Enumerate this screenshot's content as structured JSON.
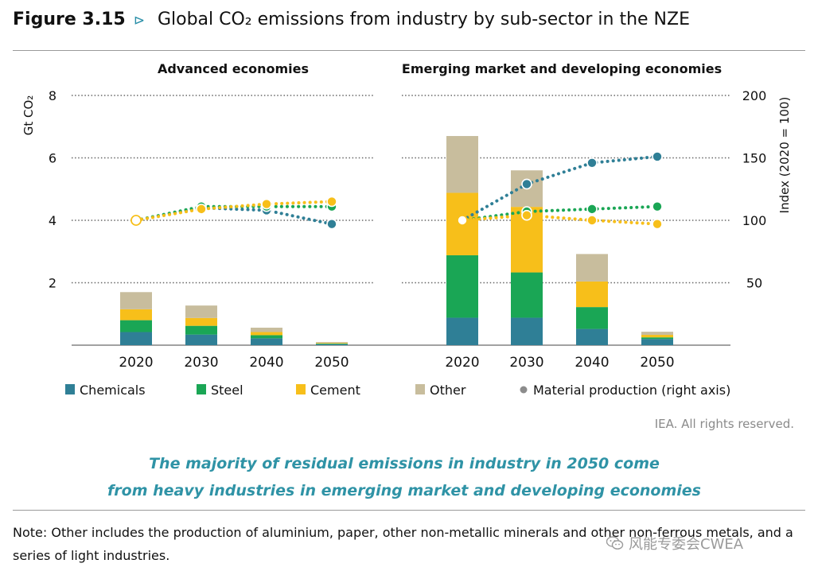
{
  "figure": {
    "number": "Figure 3.15",
    "arrow": "⊳",
    "title": "Global CO₂ emissions from industry by sub-sector in the NZE"
  },
  "chart_data": {
    "type": "bar",
    "stacked": true,
    "categories": [
      "2020",
      "2030",
      "2040",
      "2050"
    ],
    "panels": [
      {
        "title": "Advanced economies",
        "series": [
          {
            "name": "Chemicals",
            "color": "#2f7f96",
            "values": [
              0.42,
              0.34,
              0.22,
              0.03
            ]
          },
          {
            "name": "Steel",
            "color": "#1aa655",
            "values": [
              0.38,
              0.28,
              0.1,
              0.02
            ]
          },
          {
            "name": "Cement",
            "color": "#f7bf1a",
            "values": [
              0.35,
              0.25,
              0.1,
              0.02
            ]
          },
          {
            "name": "Other",
            "color": "#c8bd9d",
            "values": [
              0.55,
              0.4,
              0.14,
              0.03
            ]
          }
        ],
        "index_lines": [
          {
            "name": "Chemicals",
            "color": "#2f7f96",
            "values": [
              100,
              110,
              108,
              97
            ]
          },
          {
            "name": "Steel",
            "color": "#1aa655",
            "values": [
              100,
              111,
              111,
              111
            ]
          },
          {
            "name": "Cement",
            "color": "#f7bf1a",
            "values": [
              100,
              109,
              113,
              115
            ]
          }
        ]
      },
      {
        "title": "Emerging market and developing economies",
        "series": [
          {
            "name": "Chemicals",
            "color": "#2f7f96",
            "values": [
              0.88,
              0.88,
              0.52,
              0.2
            ]
          },
          {
            "name": "Steel",
            "color": "#1aa655",
            "values": [
              2.0,
              1.45,
              0.7,
              0.05
            ]
          },
          {
            "name": "Cement",
            "color": "#f7bf1a",
            "values": [
              2.0,
              2.1,
              0.82,
              0.08
            ]
          },
          {
            "name": "Other",
            "color": "#c8bd9d",
            "values": [
              1.82,
              1.17,
              0.88,
              0.1
            ]
          }
        ],
        "index_lines": [
          {
            "name": "Chemicals",
            "color": "#2f7f96",
            "values": [
              100,
              129,
              146,
              151
            ]
          },
          {
            "name": "Steel",
            "color": "#1aa655",
            "values": [
              100,
              107,
              109,
              111
            ]
          },
          {
            "name": "Cement",
            "color": "#f7bf1a",
            "values": [
              100,
              104,
              100,
              97
            ]
          }
        ]
      }
    ],
    "y_left": {
      "label": "Gt CO₂",
      "min": 0,
      "max": 8,
      "ticks": [
        2,
        4,
        6,
        8
      ]
    },
    "y_right": {
      "label": "Index (2020 = 100)",
      "min": 0,
      "max": 200,
      "ticks": [
        50,
        100,
        150,
        200
      ]
    },
    "legend": [
      {
        "label": "Chemicals",
        "color": "#2f7f96",
        "kind": "square"
      },
      {
        "label": "Steel",
        "color": "#1aa655",
        "kind": "square"
      },
      {
        "label": "Cement",
        "color": "#f7bf1a",
        "kind": "square"
      },
      {
        "label": "Other",
        "color": "#c8bd9d",
        "kind": "square"
      },
      {
        "label": "Material production  (right axis)",
        "color": "#8c8c8c",
        "kind": "dot"
      }
    ],
    "grid": true,
    "legend_position": "bottom"
  },
  "rights": "IEA. All rights reserved.",
  "takeaway": {
    "line1": "The majority of residual emissions in industry in 2050 come",
    "line2": "from heavy industries in emerging market and developing economies"
  },
  "note": "Note: Other includes the production of aluminium, paper, other non-metallic minerals and other non-ferrous metals, and a series of light industries.",
  "watermark": "风能专委会CWEA"
}
